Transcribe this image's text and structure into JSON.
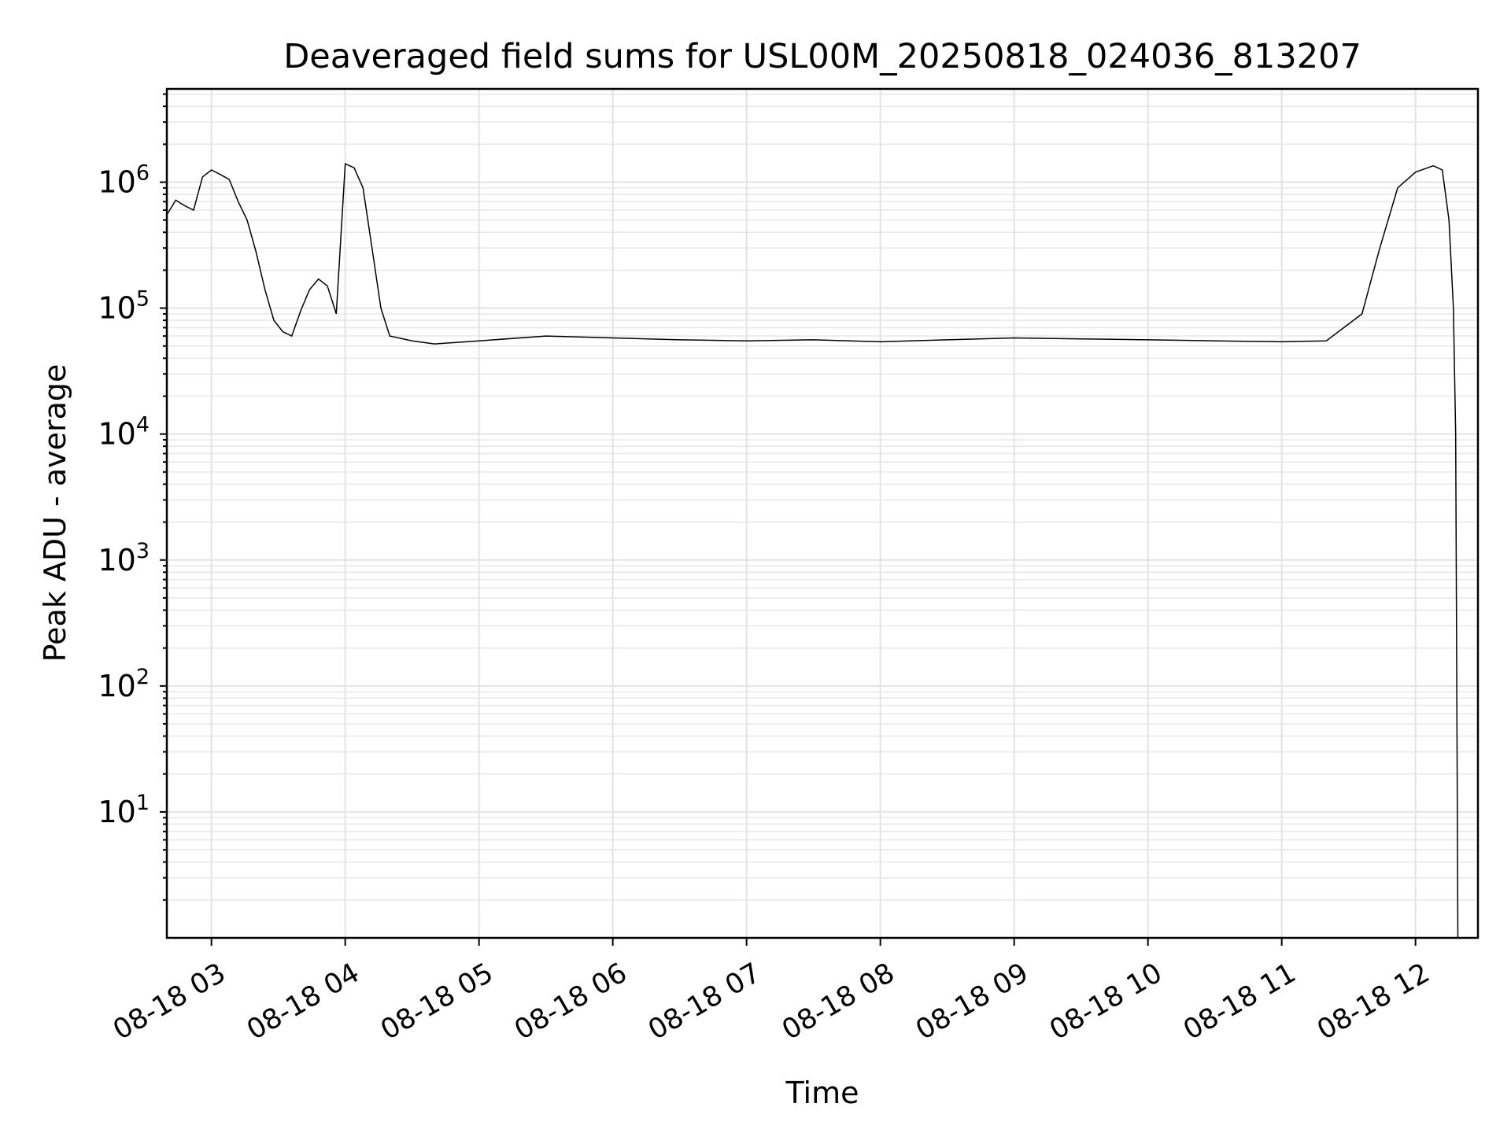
{
  "chart_data": {
    "type": "line",
    "title": "Deaveraged field sums for USL00M_20250818_024036_813207",
    "xlabel": "Time",
    "ylabel": "Peak ADU - average",
    "yscale": "log",
    "grid": true,
    "grid_minor": true,
    "line_color": "#000000",
    "x_ticks": [
      {
        "value": "2025-08-18 03:00",
        "label": "08-18 03"
      },
      {
        "value": "2025-08-18 04:00",
        "label": "08-18 04"
      },
      {
        "value": "2025-08-18 05:00",
        "label": "08-18 05"
      },
      {
        "value": "2025-08-18 06:00",
        "label": "08-18 06"
      },
      {
        "value": "2025-08-18 07:00",
        "label": "08-18 07"
      },
      {
        "value": "2025-08-18 08:00",
        "label": "08-18 08"
      },
      {
        "value": "2025-08-18 09:00",
        "label": "08-18 09"
      },
      {
        "value": "2025-08-18 10:00",
        "label": "08-18 10"
      },
      {
        "value": "2025-08-18 11:00",
        "label": "08-18 11"
      },
      {
        "value": "2025-08-18 12:00",
        "label": "08-18 12"
      }
    ],
    "y_ticks": [
      {
        "value": 10,
        "base": "10",
        "exp": "1"
      },
      {
        "value": 100,
        "base": "10",
        "exp": "2"
      },
      {
        "value": 1000,
        "base": "10",
        "exp": "3"
      },
      {
        "value": 10000,
        "base": "10",
        "exp": "4"
      },
      {
        "value": 100000,
        "base": "10",
        "exp": "5"
      },
      {
        "value": 1000000,
        "base": "10",
        "exp": "6"
      }
    ],
    "xlim": [
      "2025-08-18 02:40",
      "2025-08-18 12:28"
    ],
    "ylim": [
      1.0,
      5500000
    ],
    "series": [
      {
        "points": [
          [
            "2025-08-18 02:40",
            550000
          ],
          [
            "2025-08-18 02:44",
            720000
          ],
          [
            "2025-08-18 02:48",
            650000
          ],
          [
            "2025-08-18 02:52",
            600000
          ],
          [
            "2025-08-18 02:56",
            1100000
          ],
          [
            "2025-08-18 03:00",
            1250000
          ],
          [
            "2025-08-18 03:04",
            1150000
          ],
          [
            "2025-08-18 03:08",
            1050000
          ],
          [
            "2025-08-18 03:12",
            700000
          ],
          [
            "2025-08-18 03:16",
            500000
          ],
          [
            "2025-08-18 03:20",
            280000
          ],
          [
            "2025-08-18 03:24",
            140000
          ],
          [
            "2025-08-18 03:28",
            80000
          ],
          [
            "2025-08-18 03:32",
            65000
          ],
          [
            "2025-08-18 03:36",
            60000
          ],
          [
            "2025-08-18 03:40",
            95000
          ],
          [
            "2025-08-18 03:44",
            140000
          ],
          [
            "2025-08-18 03:48",
            170000
          ],
          [
            "2025-08-18 03:52",
            150000
          ],
          [
            "2025-08-18 03:56",
            90000
          ],
          [
            "2025-08-18 04:00",
            1400000
          ],
          [
            "2025-08-18 04:04",
            1300000
          ],
          [
            "2025-08-18 04:08",
            900000
          ],
          [
            "2025-08-18 04:12",
            300000
          ],
          [
            "2025-08-18 04:16",
            100000
          ],
          [
            "2025-08-18 04:20",
            60000
          ],
          [
            "2025-08-18 04:30",
            55000
          ],
          [
            "2025-08-18 04:40",
            52000
          ],
          [
            "2025-08-18 05:00",
            55000
          ],
          [
            "2025-08-18 05:30",
            60000
          ],
          [
            "2025-08-18 06:00",
            58000
          ],
          [
            "2025-08-18 06:30",
            56000
          ],
          [
            "2025-08-18 07:00",
            55000
          ],
          [
            "2025-08-18 07:30",
            56000
          ],
          [
            "2025-08-18 08:00",
            54000
          ],
          [
            "2025-08-18 08:30",
            56000
          ],
          [
            "2025-08-18 09:00",
            58000
          ],
          [
            "2025-08-18 09:30",
            57000
          ],
          [
            "2025-08-18 10:00",
            56000
          ],
          [
            "2025-08-18 10:30",
            55000
          ],
          [
            "2025-08-18 11:00",
            54000
          ],
          [
            "2025-08-18 11:20",
            55000
          ],
          [
            "2025-08-18 11:36",
            90000
          ],
          [
            "2025-08-18 11:44",
            300000
          ],
          [
            "2025-08-18 11:52",
            900000
          ],
          [
            "2025-08-18 12:00",
            1200000
          ],
          [
            "2025-08-18 12:08",
            1350000
          ],
          [
            "2025-08-18 12:12",
            1250000
          ],
          [
            "2025-08-18 12:15",
            500000
          ],
          [
            "2025-08-18 12:17",
            100000
          ],
          [
            "2025-08-18 12:18",
            10000
          ],
          [
            "2025-08-18 12:19",
            1.0
          ]
        ]
      }
    ]
  }
}
